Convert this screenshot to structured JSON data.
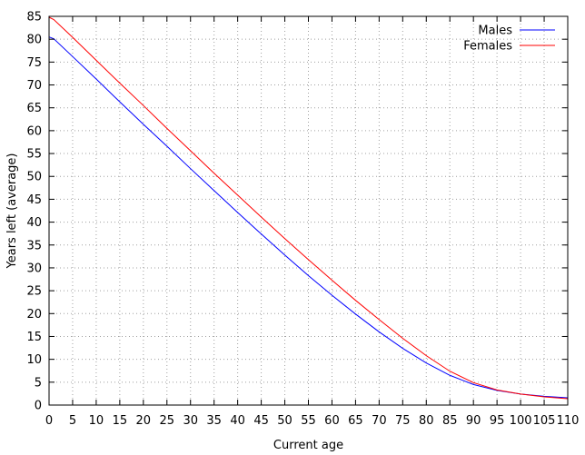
{
  "chart_data": {
    "type": "line",
    "title": "",
    "xlabel": "Current age",
    "ylabel": "Years left (average)",
    "xlim": [
      0,
      110
    ],
    "ylim": [
      0,
      85
    ],
    "xticks": [
      0,
      5,
      10,
      15,
      20,
      25,
      30,
      35,
      40,
      45,
      50,
      55,
      60,
      65,
      70,
      75,
      80,
      85,
      90,
      95,
      100,
      105,
      110
    ],
    "yticks": [
      0,
      5,
      10,
      15,
      20,
      25,
      30,
      35,
      40,
      45,
      50,
      55,
      60,
      65,
      70,
      75,
      80,
      85
    ],
    "grid": true,
    "legend_position": "top-right",
    "series": [
      {
        "name": "Males",
        "color": "#0000ff",
        "points": [
          [
            0,
            80.5
          ],
          [
            1,
            80.1
          ],
          [
            5,
            76.2
          ],
          [
            10,
            71.3
          ],
          [
            15,
            66.3
          ],
          [
            20,
            61.4
          ],
          [
            25,
            56.6
          ],
          [
            30,
            51.7
          ],
          [
            35,
            46.9
          ],
          [
            40,
            42.1
          ],
          [
            45,
            37.4
          ],
          [
            50,
            32.8
          ],
          [
            55,
            28.3
          ],
          [
            60,
            24.0
          ],
          [
            65,
            19.9
          ],
          [
            70,
            16.0
          ],
          [
            75,
            12.4
          ],
          [
            80,
            9.2
          ],
          [
            85,
            6.5
          ],
          [
            90,
            4.5
          ],
          [
            95,
            3.2
          ],
          [
            100,
            2.4
          ],
          [
            105,
            1.9
          ],
          [
            110,
            1.6
          ]
        ]
      },
      {
        "name": "Females",
        "color": "#ff0000",
        "points": [
          [
            0,
            84.8
          ],
          [
            1,
            84.3
          ],
          [
            5,
            80.4
          ],
          [
            10,
            75.4
          ],
          [
            15,
            70.4
          ],
          [
            20,
            65.5
          ],
          [
            25,
            60.5
          ],
          [
            30,
            55.6
          ],
          [
            35,
            50.7
          ],
          [
            40,
            45.9
          ],
          [
            45,
            41.1
          ],
          [
            50,
            36.4
          ],
          [
            55,
            31.8
          ],
          [
            60,
            27.3
          ],
          [
            65,
            22.9
          ],
          [
            70,
            18.7
          ],
          [
            75,
            14.6
          ],
          [
            80,
            10.8
          ],
          [
            85,
            7.4
          ],
          [
            90,
            4.9
          ],
          [
            95,
            3.3
          ],
          [
            100,
            2.4
          ],
          [
            105,
            1.8
          ],
          [
            110,
            1.4
          ]
        ]
      }
    ]
  }
}
